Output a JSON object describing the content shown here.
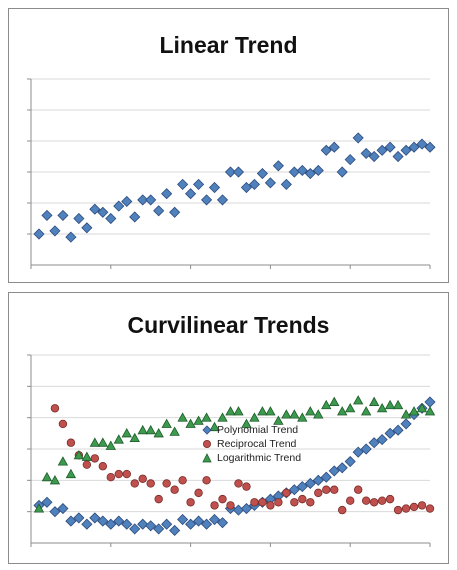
{
  "colors": {
    "diamond_fill": "#4f81bd",
    "diamond_stroke": "#2f4b7c",
    "circle_fill": "#c0504d",
    "circle_stroke": "#7a2d2a",
    "triangle_fill": "#3c9a4e",
    "triangle_stroke": "#1f5a2a",
    "gridline": "#d9d9d9",
    "axis": "#8c8c8c"
  },
  "chart_data": [
    {
      "type": "scatter",
      "title": "Linear Trend",
      "xlabel": "",
      "ylabel": "",
      "xlim": [
        0,
        50
      ],
      "ylim": [
        0,
        6
      ],
      "grid": true,
      "legend": "none",
      "series": [
        {
          "marker": "diamond",
          "points": [
            [
              1,
              1.0
            ],
            [
              2,
              1.6
            ],
            [
              3,
              1.1
            ],
            [
              4,
              1.6
            ],
            [
              5,
              0.9
            ],
            [
              6,
              1.5
            ],
            [
              7,
              1.2
            ],
            [
              8,
              1.8
            ],
            [
              9,
              1.7
            ],
            [
              10,
              1.5
            ],
            [
              11,
              1.9
            ],
            [
              12,
              2.05
            ],
            [
              13,
              1.55
            ],
            [
              14,
              2.1
            ],
            [
              15,
              2.1
            ],
            [
              16,
              1.75
            ],
            [
              17,
              2.3
            ],
            [
              18,
              1.7
            ],
            [
              19,
              2.6
            ],
            [
              20,
              2.3
            ],
            [
              21,
              2.6
            ],
            [
              22,
              2.1
            ],
            [
              23,
              2.5
            ],
            [
              24,
              2.1
            ],
            [
              25,
              3.0
            ],
            [
              26,
              3.0
            ],
            [
              27,
              2.5
            ],
            [
              28,
              2.6
            ],
            [
              29,
              2.95
            ],
            [
              30,
              2.65
            ],
            [
              31,
              3.2
            ],
            [
              32,
              2.6
            ],
            [
              33,
              3.0
            ],
            [
              34,
              3.05
            ],
            [
              35,
              2.95
            ],
            [
              36,
              3.05
            ],
            [
              37,
              3.7
            ],
            [
              38,
              3.8
            ],
            [
              39,
              3.0
            ],
            [
              40,
              3.4
            ],
            [
              41,
              4.1
            ],
            [
              42,
              3.6
            ],
            [
              43,
              3.5
            ],
            [
              44,
              3.7
            ],
            [
              45,
              3.8
            ],
            [
              46,
              3.5
            ],
            [
              47,
              3.7
            ],
            [
              48,
              3.8
            ],
            [
              49,
              3.9
            ],
            [
              50,
              3.8
            ]
          ]
        }
      ]
    },
    {
      "type": "scatter",
      "title": "Curvilinear Trends",
      "xlabel": "",
      "ylabel": "",
      "xlim": [
        0,
        50
      ],
      "ylim": [
        0,
        6
      ],
      "grid": true,
      "legend": "center",
      "series": [
        {
          "name": "Polynomial Trend",
          "marker": "diamond",
          "points": [
            [
              1,
              1.2
            ],
            [
              2,
              1.3
            ],
            [
              3,
              1.0
            ],
            [
              4,
              1.1
            ],
            [
              5,
              0.7
            ],
            [
              6,
              0.8
            ],
            [
              7,
              0.6
            ],
            [
              8,
              0.8
            ],
            [
              9,
              0.7
            ],
            [
              10,
              0.6
            ],
            [
              11,
              0.7
            ],
            [
              12,
              0.6
            ],
            [
              13,
              0.45
            ],
            [
              14,
              0.6
            ],
            [
              15,
              0.55
            ],
            [
              16,
              0.45
            ],
            [
              17,
              0.6
            ],
            [
              18,
              0.4
            ],
            [
              19,
              0.75
            ],
            [
              20,
              0.6
            ],
            [
              21,
              0.7
            ],
            [
              22,
              0.6
            ],
            [
              23,
              0.75
            ],
            [
              24,
              0.65
            ],
            [
              25,
              1.1
            ],
            [
              26,
              1.05
            ],
            [
              27,
              1.1
            ],
            [
              28,
              1.2
            ],
            [
              29,
              1.3
            ],
            [
              30,
              1.4
            ],
            [
              31,
              1.5
            ],
            [
              32,
              1.6
            ],
            [
              33,
              1.7
            ],
            [
              34,
              1.8
            ],
            [
              35,
              1.9
            ],
            [
              36,
              2.0
            ],
            [
              37,
              2.1
            ],
            [
              38,
              2.3
            ],
            [
              39,
              2.4
            ],
            [
              40,
              2.6
            ],
            [
              41,
              2.9
            ],
            [
              42,
              3.0
            ],
            [
              43,
              3.2
            ],
            [
              44,
              3.3
            ],
            [
              45,
              3.5
            ],
            [
              46,
              3.6
            ],
            [
              47,
              3.8
            ],
            [
              48,
              4.1
            ],
            [
              49,
              4.3
            ],
            [
              50,
              4.5
            ]
          ]
        },
        {
          "name": "Reciprocal Trend",
          "marker": "circle",
          "points": [
            [
              3,
              4.3
            ],
            [
              4,
              3.8
            ],
            [
              5,
              3.2
            ],
            [
              6,
              2.8
            ],
            [
              7,
              2.5
            ],
            [
              8,
              2.7
            ],
            [
              9,
              2.45
            ],
            [
              10,
              2.1
            ],
            [
              11,
              2.2
            ],
            [
              12,
              2.2
            ],
            [
              13,
              1.9
            ],
            [
              14,
              2.05
            ],
            [
              15,
              1.9
            ],
            [
              16,
              1.4
            ],
            [
              17,
              1.9
            ],
            [
              18,
              1.7
            ],
            [
              19,
              2.0
            ],
            [
              20,
              1.3
            ],
            [
              21,
              1.6
            ],
            [
              22,
              2.0
            ],
            [
              23,
              1.2
            ],
            [
              24,
              1.4
            ],
            [
              25,
              1.2
            ],
            [
              26,
              1.9
            ],
            [
              27,
              1.8
            ],
            [
              28,
              1.3
            ],
            [
              29,
              1.3
            ],
            [
              30,
              1.2
            ],
            [
              31,
              1.3
            ],
            [
              32,
              1.6
            ],
            [
              33,
              1.3
            ],
            [
              34,
              1.4
            ],
            [
              35,
              1.3
            ],
            [
              36,
              1.6
            ],
            [
              37,
              1.7
            ],
            [
              38,
              1.7
            ],
            [
              39,
              1.05
            ],
            [
              40,
              1.35
            ],
            [
              41,
              1.7
            ],
            [
              42,
              1.35
            ],
            [
              43,
              1.3
            ],
            [
              44,
              1.35
            ],
            [
              45,
              1.4
            ],
            [
              46,
              1.05
            ],
            [
              47,
              1.1
            ],
            [
              48,
              1.15
            ],
            [
              49,
              1.2
            ],
            [
              50,
              1.1
            ]
          ]
        },
        {
          "name": "Logarithmic Trend",
          "marker": "triangle",
          "points": [
            [
              1,
              1.1
            ],
            [
              2,
              2.1
            ],
            [
              3,
              2.0
            ],
            [
              4,
              2.6
            ],
            [
              5,
              2.2
            ],
            [
              6,
              2.8
            ],
            [
              7,
              2.75
            ],
            [
              8,
              3.2
            ],
            [
              9,
              3.2
            ],
            [
              10,
              3.1
            ],
            [
              11,
              3.3
            ],
            [
              12,
              3.5
            ],
            [
              13,
              3.35
            ],
            [
              14,
              3.6
            ],
            [
              15,
              3.6
            ],
            [
              16,
              3.5
            ],
            [
              17,
              3.8
            ],
            [
              18,
              3.55
            ],
            [
              19,
              4.0
            ],
            [
              20,
              3.8
            ],
            [
              21,
              3.9
            ],
            [
              22,
              4.0
            ],
            [
              23,
              3.7
            ],
            [
              24,
              4.0
            ],
            [
              25,
              4.2
            ],
            [
              26,
              4.2
            ],
            [
              27,
              3.8
            ],
            [
              28,
              4.0
            ],
            [
              29,
              4.2
            ],
            [
              30,
              4.2
            ],
            [
              31,
              3.9
            ],
            [
              32,
              4.1
            ],
            [
              33,
              4.1
            ],
            [
              34,
              4.0
            ],
            [
              35,
              4.2
            ],
            [
              36,
              4.1
            ],
            [
              37,
              4.4
            ],
            [
              38,
              4.5
            ],
            [
              39,
              4.2
            ],
            [
              40,
              4.3
            ],
            [
              41,
              4.55
            ],
            [
              42,
              4.2
            ],
            [
              43,
              4.5
            ],
            [
              44,
              4.3
            ],
            [
              45,
              4.4
            ],
            [
              46,
              4.4
            ],
            [
              47,
              4.1
            ],
            [
              48,
              4.2
            ],
            [
              49,
              4.3
            ],
            [
              50,
              4.2
            ]
          ]
        }
      ]
    }
  ]
}
